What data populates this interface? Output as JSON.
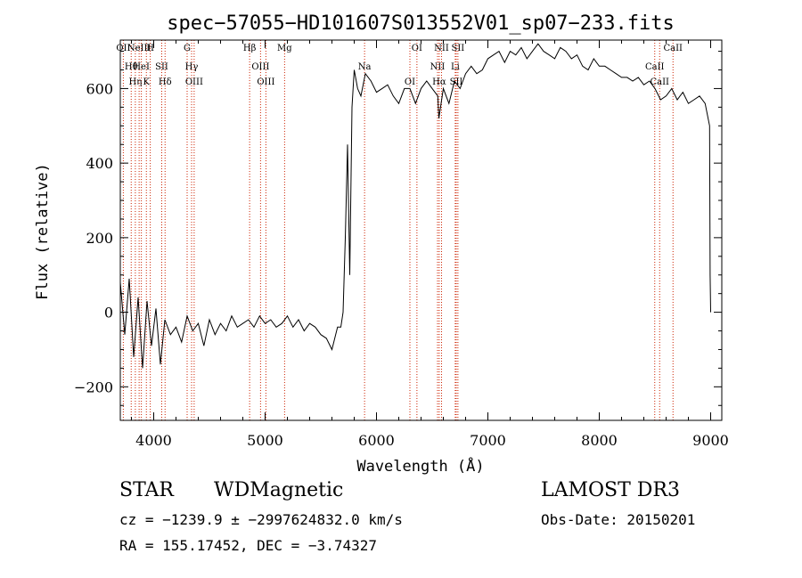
{
  "chart_data": {
    "type": "line",
    "title": "spec−57055−HD101607S013552V01_sp07−233.fits",
    "xlabel": "Wavelength (Å)",
    "ylabel": "Flux (relative)",
    "xlim": [
      3700,
      9100
    ],
    "ylim": [
      -290,
      730
    ],
    "xticks": [
      {
        "value": 4000,
        "label": "4000"
      },
      {
        "value": 5000,
        "label": "5000"
      },
      {
        "value": 6000,
        "label": "6000"
      },
      {
        "value": 7000,
        "label": "7000"
      },
      {
        "value": 8000,
        "label": "8000"
      },
      {
        "value": 9000,
        "label": "9000"
      }
    ],
    "yticks": [
      {
        "value": -200,
        "label": "−200"
      },
      {
        "value": 0,
        "label": "0"
      },
      {
        "value": 200,
        "label": "200"
      },
      {
        "value": 400,
        "label": "400"
      },
      {
        "value": 600,
        "label": "600"
      }
    ],
    "series": [
      {
        "name": "spectrum",
        "x": [
          3700,
          3740,
          3780,
          3820,
          3860,
          3900,
          3940,
          3980,
          4020,
          4060,
          4100,
          4150,
          4200,
          4250,
          4300,
          4350,
          4400,
          4450,
          4500,
          4550,
          4600,
          4650,
          4700,
          4750,
          4800,
          4850,
          4900,
          4950,
          5000,
          5050,
          5100,
          5150,
          5200,
          5250,
          5300,
          5350,
          5400,
          5450,
          5500,
          5550,
          5600,
          5650,
          5680,
          5700,
          5720,
          5740,
          5760,
          5780,
          5800,
          5830,
          5860,
          5900,
          5950,
          6000,
          6050,
          6100,
          6150,
          6200,
          6250,
          6300,
          6350,
          6400,
          6450,
          6500,
          6550,
          6560,
          6600,
          6650,
          6700,
          6750,
          6800,
          6850,
          6900,
          6950,
          7000,
          7050,
          7100,
          7150,
          7200,
          7250,
          7300,
          7350,
          7400,
          7450,
          7500,
          7550,
          7600,
          7650,
          7700,
          7750,
          7800,
          7850,
          7900,
          7950,
          8000,
          8050,
          8100,
          8150,
          8200,
          8250,
          8300,
          8350,
          8400,
          8450,
          8500,
          8550,
          8600,
          8650,
          8700,
          8750,
          8800,
          8850,
          8900,
          8950,
          8990,
          8995,
          9000
        ],
        "y": [
          80,
          -60,
          90,
          -120,
          40,
          -150,
          30,
          -90,
          10,
          -140,
          -20,
          -60,
          -40,
          -80,
          -10,
          -50,
          -30,
          -90,
          -20,
          -60,
          -30,
          -50,
          -10,
          -40,
          -30,
          -20,
          -40,
          -10,
          -30,
          -20,
          -40,
          -30,
          -10,
          -40,
          -20,
          -50,
          -30,
          -40,
          -60,
          -70,
          -100,
          -40,
          -40,
          0,
          200,
          450,
          100,
          550,
          650,
          600,
          580,
          640,
          620,
          590,
          600,
          610,
          580,
          560,
          600,
          600,
          560,
          600,
          620,
          600,
          580,
          520,
          600,
          560,
          620,
          600,
          640,
          660,
          640,
          650,
          680,
          690,
          700,
          670,
          700,
          690,
          710,
          680,
          700,
          720,
          700,
          690,
          680,
          710,
          700,
          680,
          690,
          660,
          650,
          680,
          660,
          660,
          650,
          640,
          630,
          630,
          620,
          630,
          610,
          620,
          600,
          570,
          580,
          600,
          570,
          590,
          560,
          570,
          580,
          560,
          500,
          100,
          0
        ]
      }
    ],
    "lines": [
      {
        "wl": 3727,
        "rows": [
          "OII"
        ]
      },
      {
        "wl": 3798,
        "rows": [
          "Hθ"
        ]
      },
      {
        "wl": 3835,
        "rows": [
          "Hη"
        ]
      },
      {
        "wl": 3869,
        "rows": [
          "NeIII"
        ]
      },
      {
        "wl": 3889,
        "rows": [
          "HeI"
        ]
      },
      {
        "wl": 3934,
        "rows": [
          "K"
        ]
      },
      {
        "wl": 3969,
        "rows": [
          "H"
        ]
      },
      {
        "wl": 4072,
        "rows": [
          "SII"
        ]
      },
      {
        "wl": 4102,
        "rows": [
          "Hδ"
        ]
      },
      {
        "wl": 4300,
        "rows": [
          "G"
        ]
      },
      {
        "wl": 4340,
        "rows": [
          "Hγ"
        ]
      },
      {
        "wl": 4363,
        "rows": [
          "OIII"
        ]
      },
      {
        "wl": 4861,
        "rows": [
          "Hβ"
        ]
      },
      {
        "wl": 4959,
        "rows": [
          "OIII"
        ]
      },
      {
        "wl": 5007,
        "rows": [
          "OIII"
        ]
      },
      {
        "wl": 5175,
        "rows": [
          "Mg"
        ]
      },
      {
        "wl": 5893,
        "rows": [
          "Na"
        ]
      },
      {
        "wl": 6300,
        "rows": [
          "OI"
        ]
      },
      {
        "wl": 6363,
        "rows": [
          "OI"
        ]
      },
      {
        "wl": 6548,
        "rows": [
          "NII"
        ]
      },
      {
        "wl": 6563,
        "rows": [
          "Hα"
        ]
      },
      {
        "wl": 6584,
        "rows": [
          "NII"
        ]
      },
      {
        "wl": 6707,
        "rows": [
          "Li"
        ]
      },
      {
        "wl": 6716,
        "rows": [
          "SII"
        ]
      },
      {
        "wl": 6731,
        "rows": [
          "SII"
        ]
      },
      {
        "wl": 8498,
        "rows": [
          "CaII"
        ]
      },
      {
        "wl": 8542,
        "rows": [
          "CaII"
        ]
      },
      {
        "wl": 8662,
        "rows": [
          "CaII"
        ]
      }
    ]
  },
  "footer": {
    "class_label": "STAR",
    "subclass_label": "WDMagnetic",
    "survey_label": "LAMOST DR3",
    "cz_text": "cz = −1239.9 ± −2997624832.0 km/s",
    "obs_date_text": "Obs-Date: 20150201",
    "coords_text": "RA = 155.17452, DEC =  −3.74327"
  },
  "colors": {
    "line_marker": "#cc2200",
    "spectrum": "#000000"
  }
}
